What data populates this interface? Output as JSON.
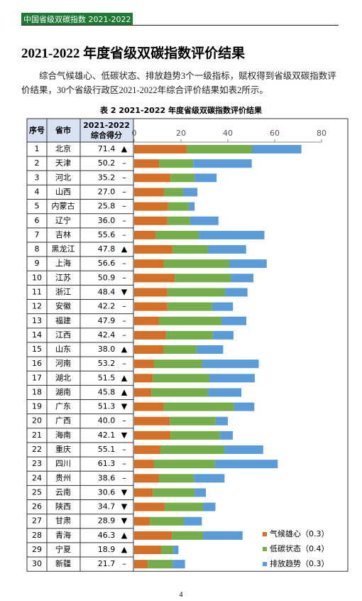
{
  "header": {
    "tag": "中国省级双碳指数 2021-2022"
  },
  "title": "2021-2022 年度省级双碳指数评价结果",
  "paragraph": "综合气候雄心、低碳状态、排放趋势3个一级指标，赋权得到省级双碳指数评价结果，30个省级行政区2021-2022年综合评价结果如表2所示。",
  "table": {
    "caption": "表 2 2021-2022 年度省级双碳指数评价结果",
    "headers": [
      "序号",
      "省市",
      [
        "2021-2022",
        "综合得分"
      ]
    ],
    "rows": [
      [
        "1",
        "北京",
        "71.4",
        "▲"
      ],
      [
        "2",
        "天津",
        "50.2",
        "–"
      ],
      [
        "3",
        "河北",
        "35.2",
        "–"
      ],
      [
        "4",
        "山西",
        "27.0",
        "–"
      ],
      [
        "5",
        "内蒙古",
        "25.8",
        "–"
      ],
      [
        "6",
        "辽宁",
        "36.0",
        "–"
      ],
      [
        "7",
        "吉林",
        "55.6",
        "–"
      ],
      [
        "8",
        "黑龙江",
        "47.8",
        "▲"
      ],
      [
        "9",
        "上海",
        "56.6",
        "–"
      ],
      [
        "10",
        "江苏",
        "50.9",
        "–"
      ],
      [
        "11",
        "浙江",
        "48.4",
        "▼"
      ],
      [
        "12",
        "安徽",
        "42.2",
        "–"
      ],
      [
        "13",
        "福建",
        "47.9",
        "–"
      ],
      [
        "14",
        "江西",
        "42.4",
        "–"
      ],
      [
        "15",
        "山东",
        "38.0",
        "▲"
      ],
      [
        "16",
        "河南",
        "53.2",
        "–"
      ],
      [
        "17",
        "湖北",
        "51.5",
        "▲"
      ],
      [
        "18",
        "湖南",
        "45.8",
        "▲"
      ],
      [
        "19",
        "广东",
        "51.3",
        "▼"
      ],
      [
        "20",
        "广西",
        "40.0",
        "–"
      ],
      [
        "21",
        "海南",
        "42.1",
        "▼"
      ],
      [
        "22",
        "重庆",
        "55.1",
        "–"
      ],
      [
        "23",
        "四川",
        "61.3",
        "–"
      ],
      [
        "24",
        "贵州",
        "38.6",
        "–"
      ],
      [
        "25",
        "云南",
        "30.6",
        "▼"
      ],
      [
        "26",
        "陕西",
        "34.7",
        "▼"
      ],
      [
        "27",
        "甘肃",
        "28.9",
        "▼"
      ],
      [
        "28",
        "青海",
        "46.3",
        "▲"
      ],
      [
        "29",
        "宁夏",
        "18.9",
        "▲"
      ],
      [
        "30",
        "新疆",
        "21.7",
        "–"
      ]
    ]
  },
  "chart": {
    "type": "stacked-bar",
    "xlim": [
      0,
      80
    ],
    "xticks": [
      0,
      20,
      40,
      60,
      80
    ],
    "series": [
      {
        "name": "气候雄心（0.3）",
        "color": "#d46f27",
        "values": [
          22.4,
          10.6,
          15.5,
          12.7,
          14.5,
          14.2,
          9.1,
          16.4,
          12.7,
          17.3,
          14.2,
          14.2,
          10.6,
          13.6,
          12.7,
          8.5,
          7.9,
          7.3,
          12.7,
          15.2,
          15.5,
          11.2,
          8.5,
          10.6,
          7.9,
          13.0,
          6.7,
          16.1,
          11.5,
          5.8
        ]
      },
      {
        "name": "低碳状态（0.4）",
        "color": "#74ad4a",
        "values": [
          27.9,
          14.6,
          10.3,
          8.2,
          8.8,
          9.7,
          18.5,
          15.1,
          27.9,
          23.9,
          24.6,
          19.1,
          26.7,
          20.0,
          14.0,
          20.6,
          24.2,
          24.2,
          30.0,
          19.6,
          21.2,
          27.3,
          26.0,
          14.9,
          17.9,
          16.4,
          14.5,
          13.3,
          5.2,
          10.6
        ]
      },
      {
        "name": "排放趋势（0.3）",
        "color": "#5b9bd8",
        "values": [
          21.1,
          25.0,
          9.4,
          6.1,
          2.5,
          12.1,
          28.0,
          16.3,
          16.0,
          9.7,
          9.6,
          8.9,
          10.6,
          8.8,
          11.3,
          24.1,
          19.4,
          14.3,
          8.6,
          5.2,
          5.4,
          16.6,
          26.8,
          13.1,
          4.8,
          5.3,
          7.7,
          16.9,
          2.2,
          5.3
        ]
      }
    ]
  },
  "page_number": "4"
}
